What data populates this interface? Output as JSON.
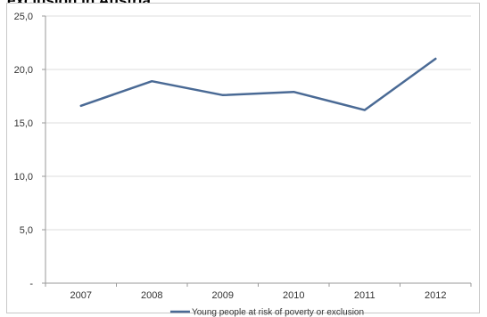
{
  "chart_data": {
    "type": "line",
    "title": "exclusion in Austria",
    "categories": [
      "2007",
      "2008",
      "2009",
      "2010",
      "2011",
      "2012"
    ],
    "series": [
      {
        "name": "Young people at risk of poverty or exclusion",
        "values": [
          16.6,
          18.9,
          17.6,
          17.9,
          16.2,
          21.0
        ]
      }
    ],
    "y_tick_labels": [
      "-",
      "5,0",
      "10,0",
      "15,0",
      "20,0",
      "25,0"
    ],
    "ylim": [
      0,
      25
    ],
    "xlabel": "",
    "ylabel": "",
    "grid": "horizontal",
    "legend_position": "bottom",
    "line_color": "#4a6a95",
    "grid_color": "#dedede",
    "axis_color": "#9a9a9a"
  }
}
